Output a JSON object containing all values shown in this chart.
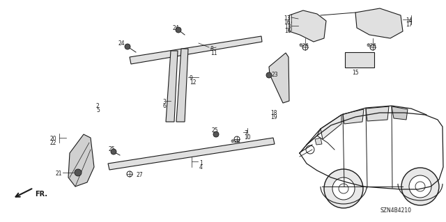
{
  "bg_color": "#ffffff",
  "line_color": "#1a1a1a",
  "diagram_code": "SZN4B4210",
  "fig_width": 6.4,
  "fig_height": 3.19,
  "dpi": 100
}
